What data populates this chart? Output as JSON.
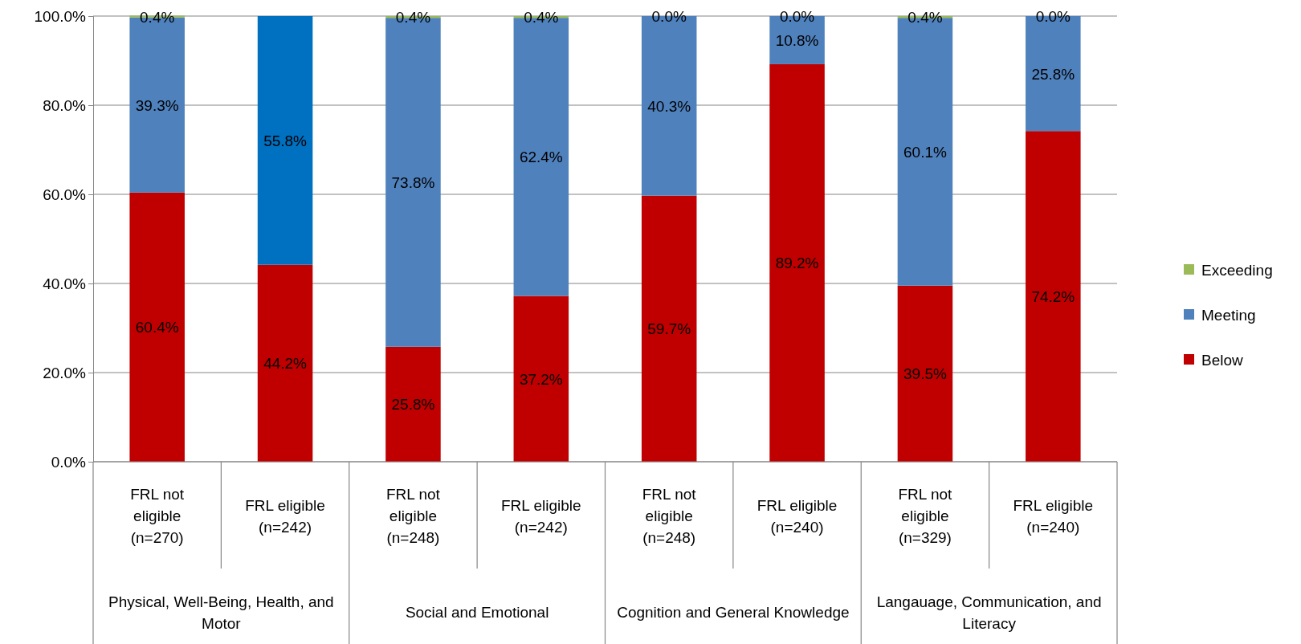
{
  "chart_data": {
    "type": "bar",
    "stacked": true,
    "categories": [
      "FRL not eligible (n=270)",
      "FRL eligible (n=242)",
      "FRL not eligible (n=248)",
      "FRL eligible (n=242)",
      "FRL not eligible (n=248)",
      "FRL eligible (n=240)",
      "FRL not eligible (n=329)",
      "FRL eligible (n=240)"
    ],
    "annotations": [
      "Physical, Well-Being, Health, and Motor",
      "Social and Emotional",
      "Cognition and General Knowledge",
      "Langauage, Communication, and Literacy"
    ],
    "series": [
      {
        "name": "Below",
        "color": "#c00000",
        "values": [
          60.4,
          44.2,
          25.8,
          37.2,
          59.7,
          89.2,
          39.5,
          74.2
        ],
        "value_labels": [
          "60.4%",
          "44.2%",
          "25.8%",
          "37.2%",
          "59.7%",
          "89.2%",
          "39.5%",
          "74.2%"
        ]
      },
      {
        "name": "Meeting",
        "color": "#4f81bd",
        "colors": [
          "#4f81bd",
          "#0070c0",
          "#4f81bd",
          "#4f81bd",
          "#4f81bd",
          "#4f81bd",
          "#4f81bd",
          "#4f81bd"
        ],
        "values": [
          39.3,
          55.8,
          73.8,
          62.4,
          40.3,
          10.8,
          60.1,
          25.8
        ],
        "value_labels": [
          "39.3%",
          "55.8%",
          "73.8%",
          "62.4%",
          "40.3%",
          "10.8%",
          "60.1%",
          "25.8%"
        ]
      },
      {
        "name": "Exceeding",
        "color": "#9bbb59",
        "values": [
          0.4,
          0,
          0.4,
          0.4,
          0.0,
          0.0,
          0.4,
          0.0
        ],
        "value_labels": [
          "0.4%",
          null,
          "0.4%",
          "0.4%",
          "0.0%",
          "0.0%",
          "0.4%",
          "0.0%"
        ]
      }
    ],
    "ylim": [
      0,
      100
    ],
    "yticks": [
      {
        "value": 0,
        "label": "0.0%"
      },
      {
        "value": 20,
        "label": "20.0%"
      },
      {
        "value": 40,
        "label": "40.0%"
      },
      {
        "value": 60,
        "label": "60.0%"
      },
      {
        "value": 80,
        "label": "80.0%"
      },
      {
        "value": 100,
        "label": "100.0%"
      }
    ],
    "grid": "y",
    "legend": "right"
  }
}
